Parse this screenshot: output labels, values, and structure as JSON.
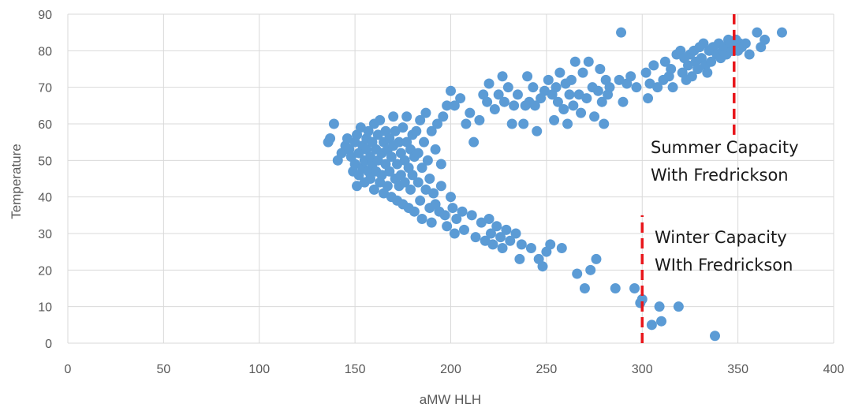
{
  "chart_data": {
    "type": "scatter",
    "xlabel": "aMW HLH",
    "ylabel": "Temperature",
    "xlim": [
      0,
      400
    ],
    "ylim": [
      0,
      90
    ],
    "xticks": [
      0,
      50,
      100,
      150,
      200,
      250,
      300,
      350,
      400
    ],
    "yticks": [
      0,
      10,
      20,
      30,
      40,
      50,
      60,
      70,
      80,
      90
    ],
    "grid": true,
    "legend": "none",
    "colors": {
      "points": "#5b9bd5",
      "reference_line": "#e8161b",
      "grid": "#d9d9d9"
    },
    "series": [
      {
        "values": [
          [
            136,
            55
          ],
          [
            137,
            56
          ],
          [
            139,
            60
          ],
          [
            141,
            50
          ],
          [
            143,
            52
          ],
          [
            145,
            54
          ],
          [
            146,
            56
          ],
          [
            147,
            53
          ],
          [
            148,
            51
          ],
          [
            149,
            47
          ],
          [
            150,
            55
          ],
          [
            150,
            49
          ],
          [
            151,
            57
          ],
          [
            151,
            43
          ],
          [
            152,
            52
          ],
          [
            152,
            46
          ],
          [
            153,
            59
          ],
          [
            154,
            54
          ],
          [
            154,
            48
          ],
          [
            155,
            50
          ],
          [
            155,
            44
          ],
          [
            156,
            56
          ],
          [
            156,
            53
          ],
          [
            157,
            47
          ],
          [
            157,
            58
          ],
          [
            158,
            51
          ],
          [
            158,
            45
          ],
          [
            159,
            55
          ],
          [
            159,
            49
          ],
          [
            160,
            60
          ],
          [
            160,
            42
          ],
          [
            161,
            53
          ],
          [
            161,
            47
          ],
          [
            162,
            57
          ],
          [
            162,
            50
          ],
          [
            163,
            44
          ],
          [
            163,
            61
          ],
          [
            164,
            52
          ],
          [
            164,
            46
          ],
          [
            165,
            55
          ],
          [
            165,
            41
          ],
          [
            166,
            49
          ],
          [
            166,
            58
          ],
          [
            167,
            53
          ],
          [
            167,
            43
          ],
          [
            168,
            56
          ],
          [
            168,
            47
          ],
          [
            169,
            51
          ],
          [
            169,
            40
          ],
          [
            170,
            62
          ],
          [
            170,
            54
          ],
          [
            171,
            45
          ],
          [
            171,
            58
          ],
          [
            172,
            49
          ],
          [
            172,
            39
          ],
          [
            173,
            55
          ],
          [
            173,
            43
          ],
          [
            174,
            52
          ],
          [
            174,
            46
          ],
          [
            175,
            59
          ],
          [
            175,
            38
          ],
          [
            176,
            50
          ],
          [
            176,
            44
          ],
          [
            177,
            62
          ],
          [
            177,
            55
          ],
          [
            178,
            48
          ],
          [
            178,
            37
          ],
          [
            179,
            53
          ],
          [
            179,
            42
          ],
          [
            180,
            57
          ],
          [
            180,
            46
          ],
          [
            181,
            51
          ],
          [
            181,
            36
          ],
          [
            182,
            58
          ],
          [
            183,
            44
          ],
          [
            183,
            52
          ],
          [
            184,
            61
          ],
          [
            184,
            39
          ],
          [
            185,
            48
          ],
          [
            185,
            34
          ],
          [
            186,
            55
          ],
          [
            187,
            42
          ],
          [
            187,
            63
          ],
          [
            188,
            50
          ],
          [
            189,
            37
          ],
          [
            189,
            45
          ],
          [
            190,
            58
          ],
          [
            190,
            33
          ],
          [
            191,
            41
          ],
          [
            192,
            53
          ],
          [
            192,
            38
          ],
          [
            193,
            60
          ],
          [
            194,
            36
          ],
          [
            195,
            49
          ],
          [
            195,
            43
          ],
          [
            196,
            62
          ],
          [
            197,
            35
          ],
          [
            198,
            65
          ],
          [
            198,
            32
          ],
          [
            200,
            69
          ],
          [
            200,
            40
          ],
          [
            201,
            37
          ],
          [
            202,
            30
          ],
          [
            202,
            65
          ],
          [
            203,
            34
          ],
          [
            205,
            67
          ],
          [
            206,
            36
          ],
          [
            207,
            31
          ],
          [
            208,
            60
          ],
          [
            210,
            63
          ],
          [
            211,
            35
          ],
          [
            212,
            55
          ],
          [
            213,
            29
          ],
          [
            215,
            61
          ],
          [
            216,
            33
          ],
          [
            217,
            68
          ],
          [
            218,
            28
          ],
          [
            219,
            66
          ],
          [
            220,
            34
          ],
          [
            220,
            71
          ],
          [
            221,
            30
          ],
          [
            222,
            27
          ],
          [
            223,
            64
          ],
          [
            224,
            32
          ],
          [
            225,
            68
          ],
          [
            226,
            29
          ],
          [
            227,
            73
          ],
          [
            227,
            26
          ],
          [
            228,
            66
          ],
          [
            229,
            31
          ],
          [
            230,
            70
          ],
          [
            231,
            28
          ],
          [
            232,
            60
          ],
          [
            233,
            65
          ],
          [
            234,
            30
          ],
          [
            235,
            68
          ],
          [
            236,
            23
          ],
          [
            237,
            27
          ],
          [
            238,
            60
          ],
          [
            239,
            65
          ],
          [
            240,
            73
          ],
          [
            241,
            66
          ],
          [
            242,
            26
          ],
          [
            243,
            70
          ],
          [
            244,
            65
          ],
          [
            245,
            58
          ],
          [
            246,
            23
          ],
          [
            247,
            67
          ],
          [
            248,
            21
          ],
          [
            249,
            69
          ],
          [
            250,
            25
          ],
          [
            251,
            72
          ],
          [
            252,
            27
          ],
          [
            253,
            68
          ],
          [
            254,
            61
          ],
          [
            255,
            70
          ],
          [
            256,
            66
          ],
          [
            257,
            74
          ],
          [
            258,
            26
          ],
          [
            259,
            64
          ],
          [
            260,
            71
          ],
          [
            261,
            60
          ],
          [
            262,
            68
          ],
          [
            263,
            72
          ],
          [
            264,
            65
          ],
          [
            265,
            77
          ],
          [
            266,
            19
          ],
          [
            267,
            68
          ],
          [
            268,
            63
          ],
          [
            269,
            74
          ],
          [
            270,
            15
          ],
          [
            271,
            67
          ],
          [
            272,
            77
          ],
          [
            273,
            20
          ],
          [
            274,
            70
          ],
          [
            275,
            62
          ],
          [
            276,
            23
          ],
          [
            277,
            69
          ],
          [
            278,
            75
          ],
          [
            279,
            66
          ],
          [
            280,
            60
          ],
          [
            281,
            72
          ],
          [
            282,
            68
          ],
          [
            283,
            70
          ],
          [
            286,
            15
          ],
          [
            288,
            72
          ],
          [
            289,
            85
          ],
          [
            290,
            66
          ],
          [
            292,
            71
          ],
          [
            294,
            73
          ],
          [
            296,
            15
          ],
          [
            297,
            70
          ],
          [
            299,
            11
          ],
          [
            300,
            12
          ],
          [
            302,
            74
          ],
          [
            303,
            67
          ],
          [
            304,
            71
          ],
          [
            305,
            5
          ],
          [
            306,
            76
          ],
          [
            308,
            70
          ],
          [
            309,
            10
          ],
          [
            310,
            6
          ],
          [
            311,
            72
          ],
          [
            312,
            77
          ],
          [
            314,
            73
          ],
          [
            315,
            75
          ],
          [
            316,
            70
          ],
          [
            318,
            79
          ],
          [
            319,
            10
          ],
          [
            320,
            80
          ],
          [
            321,
            74
          ],
          [
            322,
            78
          ],
          [
            323,
            72
          ],
          [
            324,
            76
          ],
          [
            325,
            79
          ],
          [
            326,
            73
          ],
          [
            327,
            80
          ],
          [
            328,
            77
          ],
          [
            329,
            75
          ],
          [
            330,
            81
          ],
          [
            331,
            78
          ],
          [
            332,
            82
          ],
          [
            333,
            76
          ],
          [
            334,
            74
          ],
          [
            335,
            80
          ],
          [
            336,
            77
          ],
          [
            337,
            81
          ],
          [
            338,
            2
          ],
          [
            339,
            79
          ],
          [
            340,
            82
          ],
          [
            341,
            78
          ],
          [
            342,
            80
          ],
          [
            343,
            81
          ],
          [
            344,
            79
          ],
          [
            345,
            83
          ],
          [
            346,
            82
          ],
          [
            347,
            80
          ],
          [
            348,
            81
          ],
          [
            349,
            83
          ],
          [
            350,
            80
          ],
          [
            351,
            82
          ],
          [
            352,
            81
          ],
          [
            354,
            82
          ],
          [
            356,
            79
          ],
          [
            360,
            85
          ],
          [
            362,
            81
          ],
          [
            364,
            83
          ],
          [
            373,
            85
          ]
        ]
      }
    ],
    "reference_lines": [
      {
        "x": 300,
        "y_from": 0,
        "y_to": 35,
        "label_lines": [
          "Winter Capacity",
          "WIth Fredrickson"
        ]
      },
      {
        "x": 348,
        "y_from": 57,
        "y_to": 90,
        "label_lines": [
          "Summer Capacity",
          "With Fredrickson"
        ]
      }
    ]
  }
}
